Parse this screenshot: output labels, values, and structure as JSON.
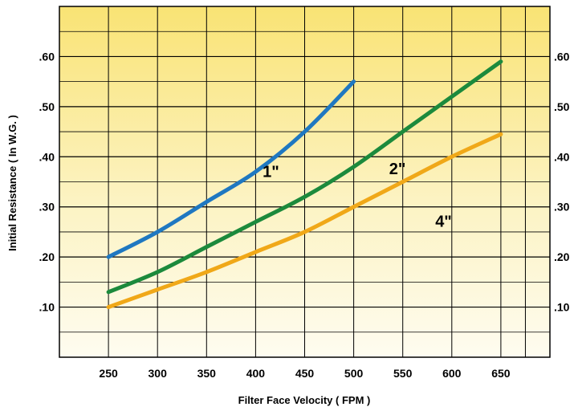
{
  "chart_data": {
    "type": "line",
    "xlabel": "Filter Face Velocity  ( FPM )",
    "ylabel": "Initial Resistance ( In W.G. )",
    "x_ticks": [
      "250",
      "300",
      "350",
      "400",
      "450",
      "500",
      "550",
      "600",
      "650"
    ],
    "y_ticks": [
      ".10",
      ".20",
      ".30",
      ".40",
      ".50",
      ".60"
    ],
    "xlim": [
      200,
      700
    ],
    "ylim": [
      0,
      0.7
    ],
    "grid": true,
    "series": [
      {
        "name": "1\"",
        "color": "#1f78c1",
        "x": [
          250,
          300,
          350,
          400,
          450,
          500
        ],
        "y": [
          0.2,
          0.25,
          0.31,
          0.37,
          0.45,
          0.55
        ]
      },
      {
        "name": "2\"",
        "color": "#1c8a3c",
        "x": [
          250,
          300,
          350,
          400,
          450,
          500,
          550,
          600,
          650
        ],
        "y": [
          0.13,
          0.17,
          0.22,
          0.27,
          0.32,
          0.38,
          0.45,
          0.52,
          0.59
        ]
      },
      {
        "name": "4\"",
        "color": "#f0a818",
        "x": [
          250,
          300,
          350,
          400,
          450,
          500,
          550,
          600,
          650
        ],
        "y": [
          0.1,
          0.135,
          0.17,
          0.21,
          0.25,
          0.3,
          0.35,
          0.4,
          0.445
        ]
      }
    ]
  }
}
